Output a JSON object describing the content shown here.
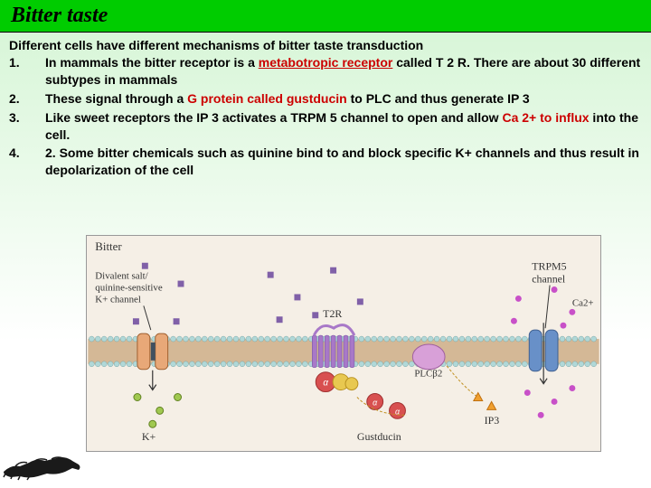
{
  "title": "Bitter taste",
  "intro": "Different cells have different mechanisms of bitter taste transduction",
  "items": [
    {
      "n": "1.",
      "pre": "In mammals the bitter receptor is a ",
      "red": "metabotropic receptor",
      "post": " called T 2 R. There are about 30 different subtypes in mammals"
    },
    {
      "n": "2.",
      "pre": "    These signal through a ",
      "red": "G protein called gustducin",
      "post": " to PLC and thus generate IP 3"
    },
    {
      "n": "3.",
      "pre": "       Like sweet receptors the IP 3 activates a TRPM 5 channel to open and allow ",
      "red": "Ca 2+ to influx",
      "post": " into the cell."
    },
    {
      "n": "4.",
      "pre": "2.   Some bitter chemicals such as quinine bind to and block specific K+ channels and thus result in depolarization of the cell",
      "red": "",
      "post": ""
    }
  ],
  "diagram": {
    "header": "Bitter",
    "labels": {
      "kchan": "Divalent salt/\nquinine-sensitive\nK+ channel",
      "t2r": "T2R",
      "plc": "PLCβ2",
      "gust": "Gustducin",
      "ip3": "IP3",
      "trpm5": "TRPM5\nchannel",
      "ca": "Ca2+",
      "k": "K+"
    },
    "colors": {
      "membrane_top": "#b0d8d8",
      "membrane_dot": "#7aa5a5",
      "membrane_band": "#d4b896",
      "kchan": "#e8a878",
      "t2r": "#a878c8",
      "trpm5": "#6890c8",
      "plc": "#d8a0d8",
      "gprot_a": "#d85050",
      "gprot_bg": "#e8c850",
      "ip3": "#f0a030",
      "ca": "#c850c8",
      "ligand": "#8060a8",
      "bg": "#f5efe6"
    }
  }
}
